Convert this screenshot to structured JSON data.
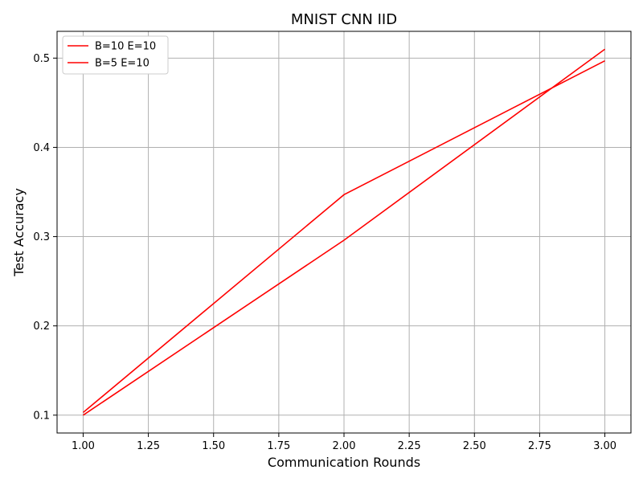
{
  "chart_data": {
    "type": "line",
    "title": "MNIST CNN IID",
    "xlabel": "Communication Rounds",
    "ylabel": "Test Accuracy",
    "xlim": [
      0.9,
      3.1
    ],
    "ylim": [
      0.08,
      0.53
    ],
    "xticks": [
      1.0,
      1.25,
      1.5,
      1.75,
      2.0,
      2.25,
      2.5,
      2.75,
      3.0
    ],
    "xtick_labels": [
      "1.00",
      "1.25",
      "1.50",
      "1.75",
      "2.00",
      "2.25",
      "2.50",
      "2.75",
      "3.00"
    ],
    "yticks": [
      0.1,
      0.2,
      0.3,
      0.4,
      0.5
    ],
    "ytick_labels": [
      "0.1",
      "0.2",
      "0.3",
      "0.4",
      "0.5"
    ],
    "grid": true,
    "legend_position": "top-left",
    "series": [
      {
        "name": "B=10 E=10",
        "color": "#ff0000",
        "x": [
          1,
          2,
          3
        ],
        "y": [
          0.1,
          0.296,
          0.51
        ]
      },
      {
        "name": "B=5 E=10",
        "color": "#ff0000",
        "x": [
          1,
          2,
          3
        ],
        "y": [
          0.103,
          0.347,
          0.497
        ]
      }
    ]
  }
}
